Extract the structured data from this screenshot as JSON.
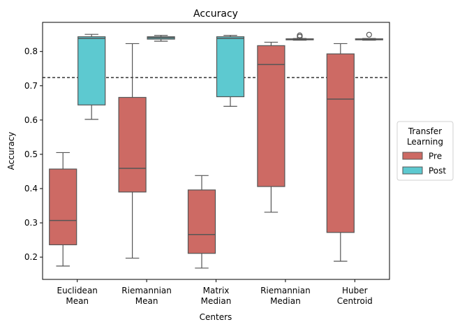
{
  "chart_data": {
    "type": "box",
    "title": "Accuracy",
    "xlabel": "Centers",
    "ylabel": "Accuracy",
    "ylim": [
      0.135,
      0.885
    ],
    "yticks": [
      "0.2",
      "0.3",
      "0.4",
      "0.5",
      "0.6",
      "0.7",
      "0.8"
    ],
    "ytick_values": [
      0.2,
      0.3,
      0.4,
      0.5,
      0.6,
      0.7,
      0.8
    ],
    "categories": [
      [
        "Euclidean",
        "Mean"
      ],
      [
        "Riemannian",
        "Mean"
      ],
      [
        "Matrix",
        "Median"
      ],
      [
        "Riemannian",
        "Median"
      ],
      [
        "Huber",
        "Centroid"
      ]
    ],
    "reference_line": 0.724,
    "legend": {
      "title_lines": [
        "Transfer",
        "Learning"
      ],
      "placement": "center-right-outside"
    },
    "grid": false,
    "series": [
      {
        "name": "Pre",
        "color": "#cd6a64",
        "boxes": [
          {
            "min": 0.174,
            "q1": 0.236,
            "median": 0.307,
            "q3": 0.457,
            "max": 0.505,
            "outliers": []
          },
          {
            "min": 0.197,
            "q1": 0.39,
            "median": 0.459,
            "q3": 0.666,
            "max": 0.823,
            "outliers": []
          },
          {
            "min": 0.168,
            "q1": 0.211,
            "median": 0.266,
            "q3": 0.396,
            "max": 0.438,
            "outliers": []
          },
          {
            "min": 0.331,
            "q1": 0.406,
            "median": 0.762,
            "q3": 0.817,
            "max": 0.827,
            "outliers": []
          },
          {
            "min": 0.188,
            "q1": 0.272,
            "median": 0.661,
            "q3": 0.793,
            "max": 0.823,
            "outliers": []
          }
        ]
      },
      {
        "name": "Post",
        "color": "#5dc9d0",
        "boxes": [
          {
            "min": 0.602,
            "q1": 0.644,
            "median": 0.838,
            "q3": 0.843,
            "max": 0.85,
            "outliers": []
          },
          {
            "min": 0.83,
            "q1": 0.836,
            "median": 0.84,
            "q3": 0.843,
            "max": 0.847,
            "outliers": []
          },
          {
            "min": 0.64,
            "q1": 0.668,
            "median": 0.838,
            "q3": 0.843,
            "max": 0.847,
            "outliers": []
          },
          {
            "min": 0.833,
            "q1": 0.834,
            "median": 0.835,
            "q3": 0.837,
            "max": 0.838,
            "outliers": [
              0.843,
              0.847
            ]
          },
          {
            "min": 0.833,
            "q1": 0.834,
            "median": 0.835,
            "q3": 0.837,
            "max": 0.838,
            "outliers": [
              0.849
            ]
          }
        ]
      }
    ]
  }
}
